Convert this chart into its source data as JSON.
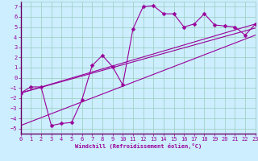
{
  "title": "",
  "xlabel": "Windchill (Refroidissement éolien,°C)",
  "bg_color": "#cceeff",
  "line_color": "#990099",
  "xlim": [
    0,
    23
  ],
  "ylim": [
    -5.5,
    7.5
  ],
  "xticks": [
    0,
    1,
    2,
    3,
    4,
    5,
    6,
    7,
    8,
    9,
    10,
    11,
    12,
    13,
    14,
    15,
    16,
    17,
    18,
    19,
    20,
    21,
    22,
    23
  ],
  "yticks": [
    -5,
    -4,
    -3,
    -2,
    -1,
    0,
    1,
    2,
    3,
    4,
    5,
    6,
    7
  ],
  "line1_x": [
    0,
    1,
    2,
    3,
    4,
    5,
    6,
    7,
    8,
    9,
    10,
    11,
    12,
    13,
    14,
    15,
    16,
    17,
    18,
    19,
    20,
    21,
    22,
    23
  ],
  "line1_y": [
    -1.5,
    -0.9,
    -0.9,
    -4.7,
    -4.5,
    -4.4,
    -2.2,
    1.2,
    2.2,
    1.1,
    -0.7,
    4.8,
    7.0,
    7.1,
    6.3,
    6.3,
    5.0,
    5.3,
    6.3,
    5.2,
    5.1,
    5.0,
    4.2,
    5.3
  ],
  "line2_x": [
    0,
    23
  ],
  "line2_y": [
    -1.5,
    5.3
  ],
  "line3_x": [
    0,
    23
  ],
  "line3_y": [
    -4.7,
    4.2
  ],
  "line4_x": [
    0,
    23
  ],
  "line4_y": [
    -1.5,
    4.9
  ],
  "grid_color": "#99ccbb",
  "marker": "D",
  "markersize": 2.5,
  "tick_fontsize": 5,
  "xlabel_fontsize": 5,
  "lw": 0.8
}
